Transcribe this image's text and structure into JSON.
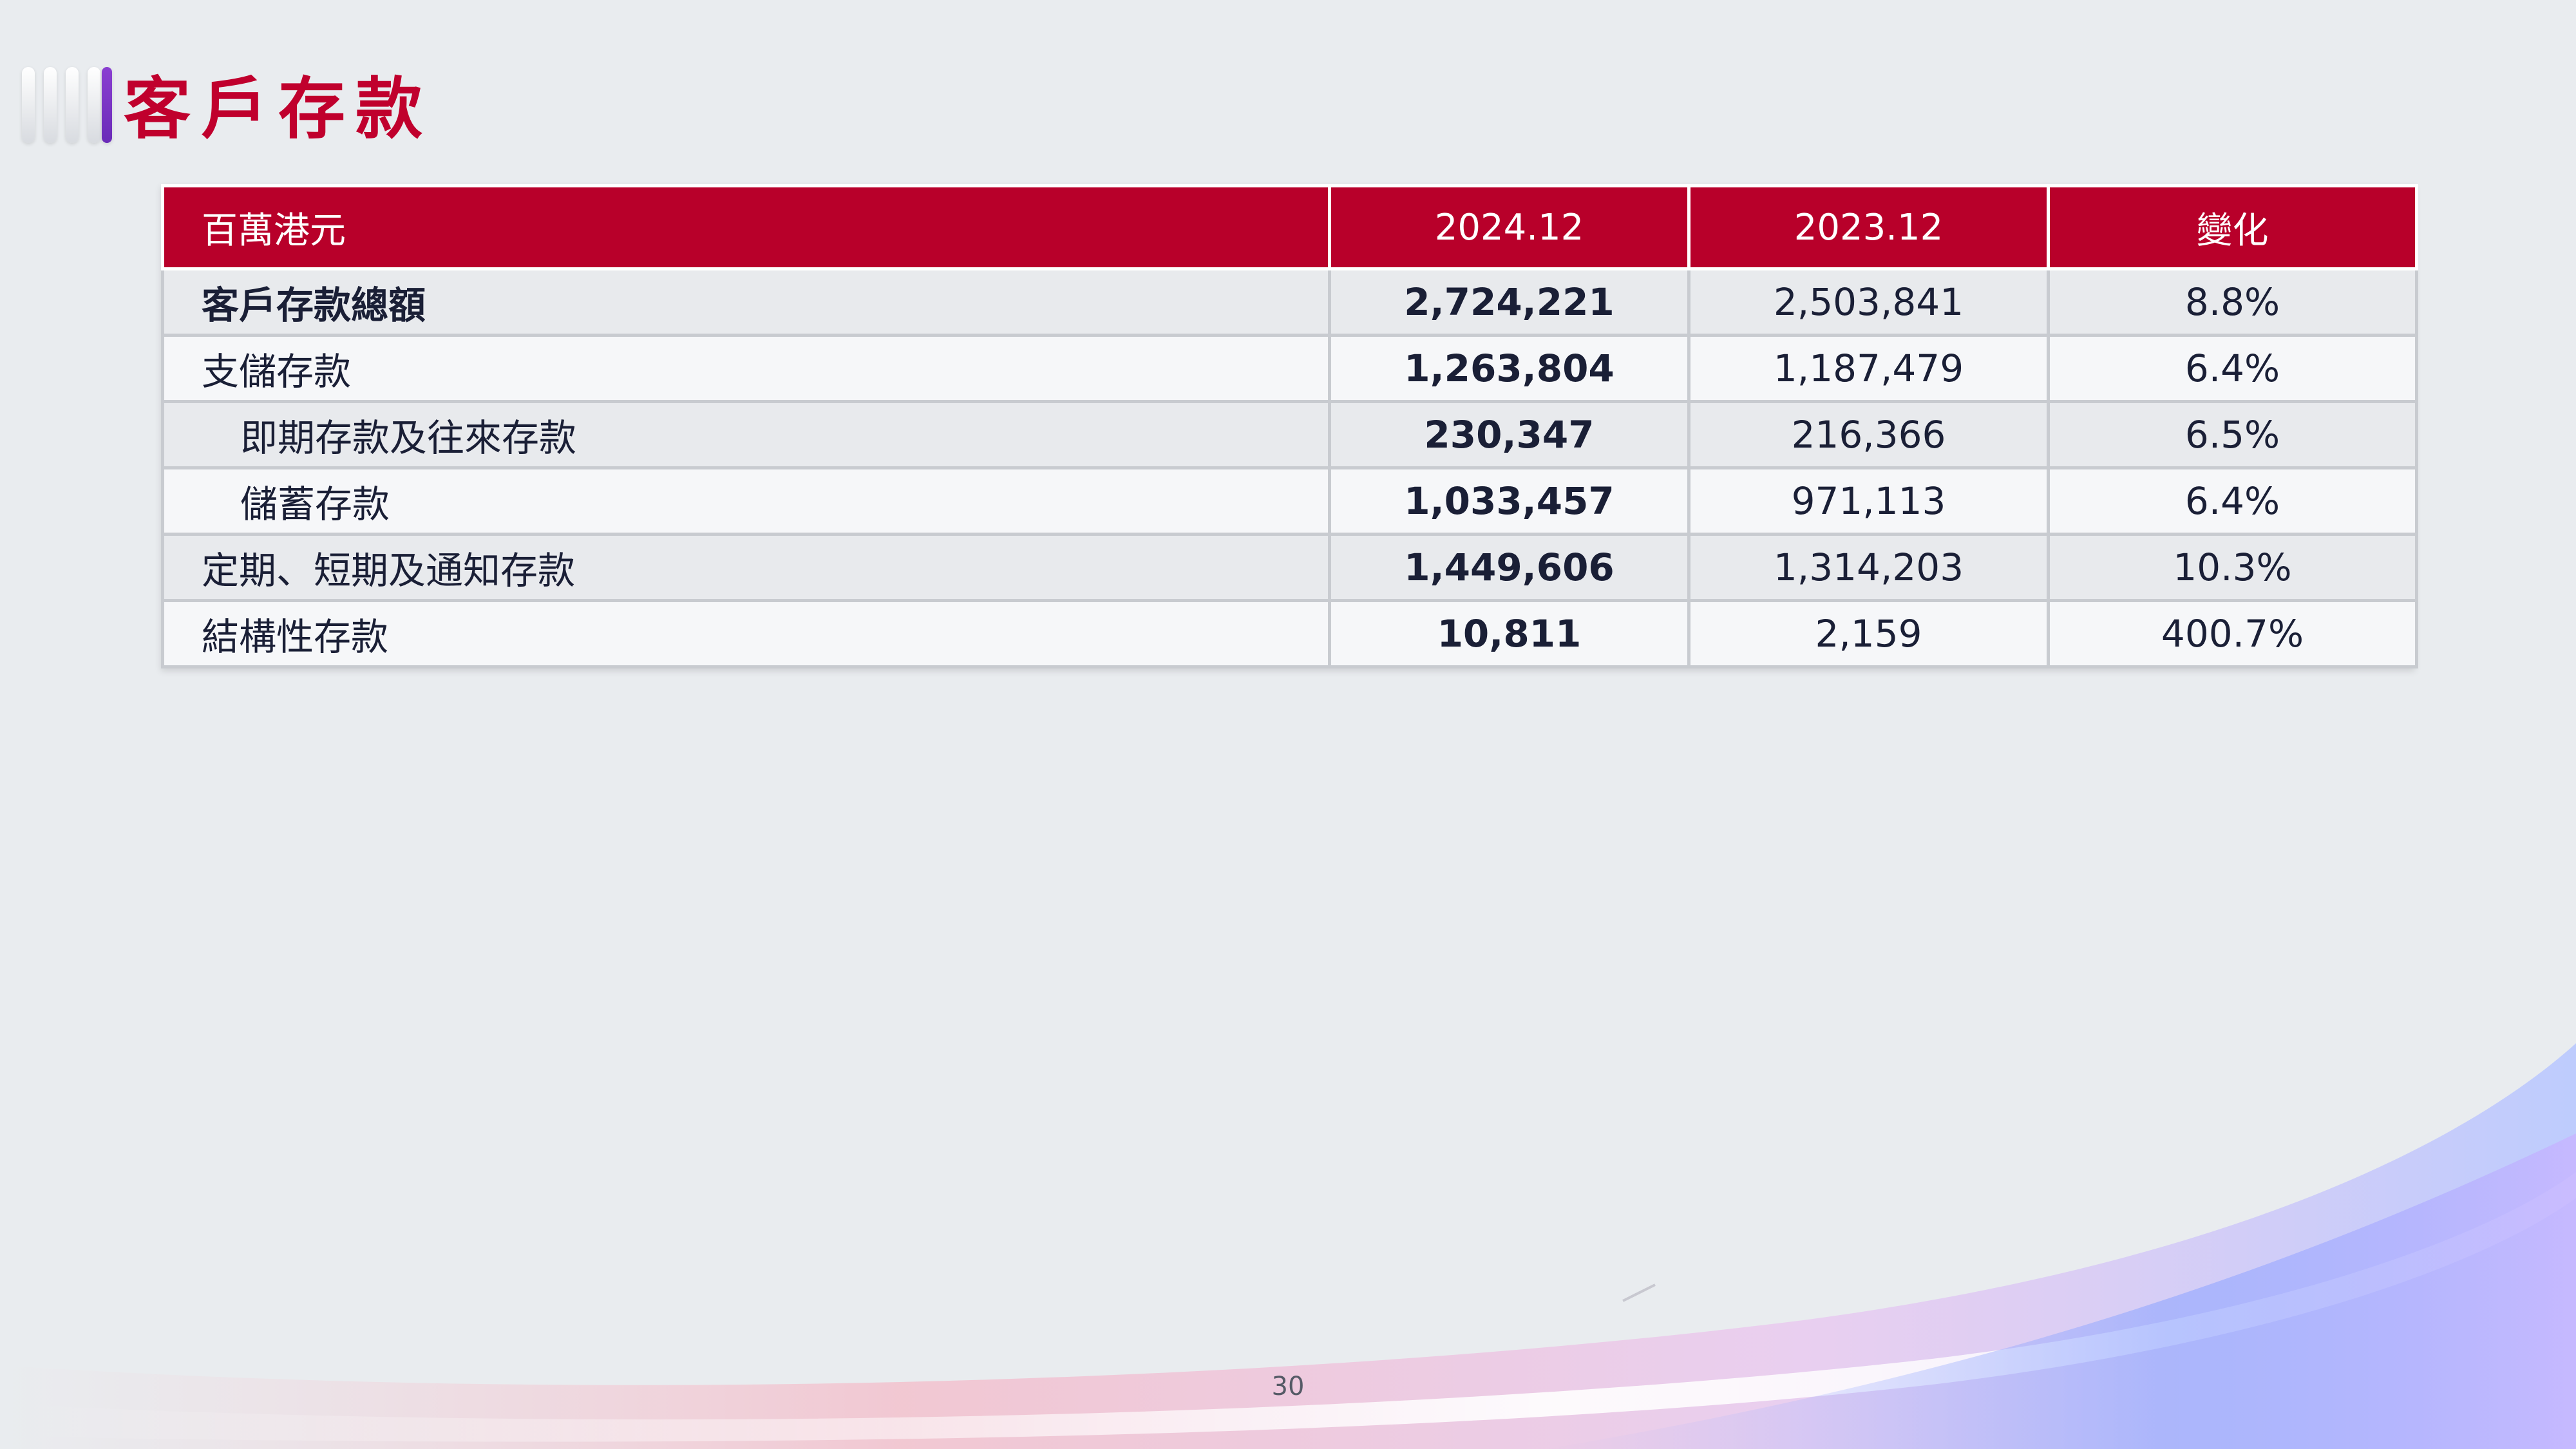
{
  "title": "客戶存款",
  "table": {
    "headers": [
      "百萬港元",
      "2024.12",
      "2023.12",
      "變化"
    ],
    "rows": [
      {
        "label": "客戶存款總額",
        "v2024": "2,724,221",
        "v2023": "2,503,841",
        "change": "8.8%"
      },
      {
        "label": "支儲存款",
        "v2024": "1,263,804",
        "v2023": "1,187,479",
        "change": "6.4%"
      },
      {
        "label": "即期存款及往來存款",
        "v2024": "230,347",
        "v2023": "216,366",
        "change": "6.5%"
      },
      {
        "label": "儲蓄存款",
        "v2024": "1,033,457",
        "v2023": "971,113",
        "change": "6.4%"
      },
      {
        "label": "定期、短期及通知存款",
        "v2024": "1,449,606",
        "v2023": "1,314,203",
        "change": "10.3%"
      },
      {
        "label": "結構性存款",
        "v2024": "10,811",
        "v2023": "2,159",
        "change": "400.7%"
      }
    ]
  },
  "page_number": "30",
  "colors": {
    "title": "#c0002d",
    "header_bg": "#b8002a",
    "accent_bar": "#7a35c6",
    "background": "#e9ecef"
  }
}
